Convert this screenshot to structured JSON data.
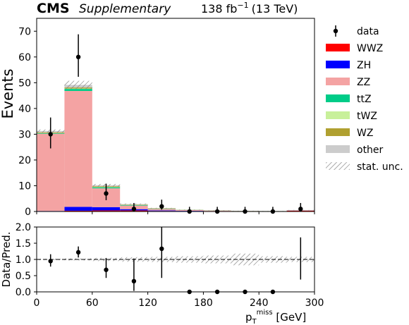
{
  "header": {
    "experiment": "CMS",
    "tag": "Supplementary",
    "lumi": "138 fb",
    "lumi_exp": "−1",
    "energy": "(13 TeV)"
  },
  "legend": {
    "data": "data",
    "wwz": "WWZ",
    "zh": "ZH",
    "zz": "ZZ",
    "ttz": "ttZ",
    "twz": "tWZ",
    "wz": "WZ",
    "other": "other",
    "unc": "stat. unc."
  },
  "chart_data": [
    {
      "type": "bar",
      "stacked": true,
      "ylabel": "Events",
      "ylim": [
        0,
        75
      ],
      "xlim": [
        0,
        300
      ],
      "yticks": [
        0,
        10,
        20,
        30,
        40,
        50,
        60,
        70
      ],
      "bin_edges": [
        0,
        30,
        60,
        90,
        120,
        150,
        180,
        210,
        240,
        270,
        300
      ],
      "series": [
        {
          "name": "WWZ",
          "color": "#ff0000",
          "values": [
            0.1,
            0.3,
            0.4,
            0.4,
            0.2,
            0.15,
            0.1,
            0.08,
            0.06,
            0.3
          ]
        },
        {
          "name": "ZH",
          "color": "#0000ff",
          "values": [
            0.1,
            1.5,
            1.3,
            0.5,
            0.2,
            0.1,
            0.05,
            0.03,
            0.02,
            0.05
          ]
        },
        {
          "name": "ZZ",
          "color": "#f4a3a3",
          "values": [
            30.0,
            45.0,
            7.3,
            1.4,
            0.6,
            0.3,
            0.2,
            0.1,
            0.06,
            0.1
          ]
        },
        {
          "name": "ttZ",
          "color": "#00cc88",
          "values": [
            0.2,
            0.8,
            0.4,
            0.2,
            0.1,
            0.05,
            0.03,
            0.02,
            0.01,
            0.03
          ]
        },
        {
          "name": "tWZ",
          "color": "#c8f09a",
          "values": [
            0.05,
            0.15,
            0.1,
            0.05,
            0.03,
            0.02,
            0.01,
            0.01,
            0.01,
            0.01
          ]
        },
        {
          "name": "WZ",
          "color": "#b0a030",
          "values": [
            0.3,
            0.4,
            0.3,
            0.15,
            0.1,
            0.05,
            0.03,
            0.02,
            0.01,
            0.03
          ]
        },
        {
          "name": "other",
          "color": "#cccccc",
          "values": [
            0.5,
            1.0,
            0.4,
            0.2,
            0.1,
            0.05,
            0.05,
            0.02,
            0.02,
            0.05
          ]
        }
      ],
      "stat_unc": [
        0.6,
        1.6,
        0.5,
        0.2,
        0.1,
        0.05,
        0.04,
        0.03,
        0.02,
        0.04
      ],
      "data": {
        "name": "data",
        "x": [
          15,
          45,
          75,
          105,
          135,
          165,
          195,
          225,
          255,
          285
        ],
        "y": [
          30,
          60,
          7,
          1,
          2,
          0,
          0,
          0,
          0,
          1
        ],
        "yerr_low": [
          5.5,
          7.7,
          2.6,
          0.8,
          1.3,
          0,
          0,
          0,
          0,
          0.8
        ],
        "yerr_high": [
          6.5,
          8.8,
          3.8,
          2.3,
          2.6,
          1.8,
          1.8,
          1.8,
          1.8,
          2.3
        ]
      }
    },
    {
      "type": "scatter",
      "ylabel": "Data/Pred.",
      "xlabel": "p",
      "xlabel_sub": "T",
      "xlabel_sup": "miss",
      "xlabel_unit": " [GeV]",
      "xlim": [
        0,
        300
      ],
      "ylim": [
        0,
        2.0
      ],
      "xticks": [
        0,
        60,
        120,
        180,
        240,
        300
      ],
      "yticks": [
        "0.0",
        "0.5",
        "1.0",
        "1.5",
        "2.0"
      ],
      "reference_line": 1.0,
      "x": [
        15,
        45,
        75,
        105,
        135,
        165,
        195,
        225,
        255,
        285
      ],
      "y": [
        0.95,
        1.22,
        0.68,
        0.33,
        1.33,
        0,
        0,
        0,
        0,
        null
      ],
      "yerr_low": [
        0.17,
        0.16,
        0.25,
        0.3,
        0.9,
        0,
        0,
        0,
        0,
        0.62
      ],
      "yerr_high": [
        0.21,
        0.18,
        0.36,
        0.7,
        0.67,
        0,
        0,
        0,
        0,
        0.68
      ],
      "unc_band": [
        0.02,
        0.03,
        0.05,
        0.07,
        0.08,
        0.1,
        0.12,
        0.18,
        0.1,
        0.08
      ]
    }
  ]
}
